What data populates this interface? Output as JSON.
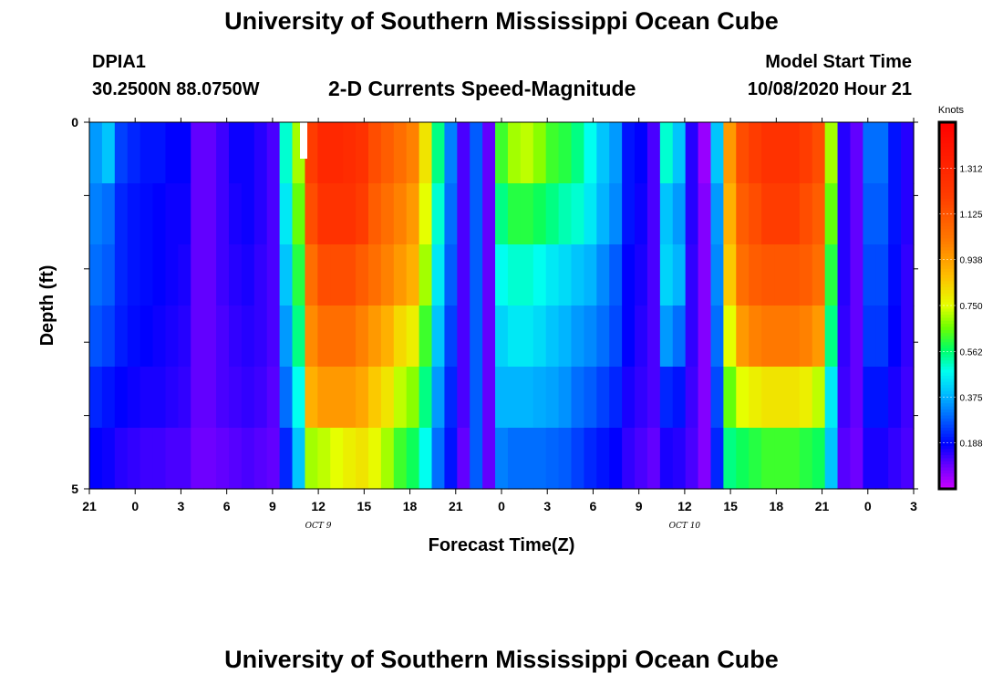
{
  "header": {
    "title": "University of Southern Mississippi Ocean Cube",
    "station_id": "DPIA1",
    "station_coords": "30.2500N 88.0750W",
    "plot_title": "2-D Currents Speed-Magnitude",
    "model_start_label": "Model Start Time",
    "model_start_value": "10/08/2020 Hour 21"
  },
  "footer": {
    "title": "University of Southern Mississippi Ocean Cube"
  },
  "chart_data": {
    "type": "heatmap",
    "title": "2-D Currents Speed-Magnitude",
    "xlabel": "Forecast Time(Z)",
    "ylabel": "Depth (ft)",
    "x_ticks": [
      "21",
      "0",
      "3",
      "6",
      "9",
      "12",
      "15",
      "18",
      "21",
      "0",
      "3",
      "6",
      "9",
      "12",
      "15",
      "18",
      "21",
      "0",
      "3"
    ],
    "x_range_hours": [
      0,
      54
    ],
    "date_labels": [
      {
        "label": "OCT 9",
        "hour": 15
      },
      {
        "label": "OCT 10",
        "hour": 39
      }
    ],
    "y_ticks": [
      "0",
      "5"
    ],
    "y_range": [
      0,
      5
    ],
    "depth_rows": 6,
    "colorbar": {
      "title": "Knots",
      "range": [
        0,
        1.5
      ],
      "ticks": [
        "1.312",
        "1.125",
        "0.938",
        "0.750",
        "0.562",
        "0.375",
        "0.188"
      ],
      "tick_values": [
        1.312,
        1.125,
        0.938,
        0.75,
        0.562,
        0.375,
        0.188
      ]
    },
    "speed_knots_by_depth_row": [
      [
        0.35,
        0.4,
        0.25,
        0.22,
        0.2,
        0.2,
        0.18,
        0.18,
        0.1,
        0.1,
        0.13,
        0.17,
        0.17,
        0.15,
        0.12,
        0.5,
        0.7,
        1.2,
        1.3,
        1.3,
        1.28,
        1.25,
        1.15,
        1.1,
        1.05,
        1.0,
        0.8,
        0.55,
        0.32,
        0.12,
        0.28,
        0.1,
        0.62,
        0.7,
        0.72,
        0.68,
        0.62,
        0.6,
        0.55,
        0.48,
        0.4,
        0.35,
        0.2,
        0.18,
        0.12,
        0.5,
        0.4,
        0.15,
        0.05,
        0.4,
        0.95,
        1.15,
        1.2,
        1.25,
        1.25,
        1.25,
        1.2,
        1.15,
        0.7,
        0.15,
        0.1,
        0.3,
        0.3,
        0.2,
        0.15
      ],
      [
        0.32,
        0.3,
        0.22,
        0.2,
        0.19,
        0.18,
        0.17,
        0.17,
        0.1,
        0.1,
        0.13,
        0.16,
        0.17,
        0.15,
        0.12,
        0.45,
        0.65,
        1.15,
        1.25,
        1.25,
        1.25,
        1.2,
        1.1,
        1.05,
        1.0,
        0.95,
        0.75,
        0.5,
        0.3,
        0.12,
        0.28,
        0.1,
        0.55,
        0.6,
        0.6,
        0.58,
        0.55,
        0.52,
        0.5,
        0.45,
        0.38,
        0.33,
        0.2,
        0.17,
        0.12,
        0.4,
        0.35,
        0.15,
        0.07,
        0.35,
        0.9,
        1.1,
        1.15,
        1.2,
        1.2,
        1.2,
        1.15,
        1.1,
        0.65,
        0.15,
        0.1,
        0.28,
        0.28,
        0.2,
        0.15
      ],
      [
        0.3,
        0.28,
        0.22,
        0.2,
        0.19,
        0.18,
        0.17,
        0.16,
        0.1,
        0.1,
        0.13,
        0.15,
        0.16,
        0.14,
        0.12,
        0.4,
        0.6,
        1.05,
        1.15,
        1.15,
        1.15,
        1.1,
        1.05,
        1.0,
        0.95,
        0.9,
        0.7,
        0.45,
        0.28,
        0.12,
        0.28,
        0.1,
        0.48,
        0.5,
        0.5,
        0.48,
        0.45,
        0.43,
        0.4,
        0.38,
        0.33,
        0.28,
        0.18,
        0.16,
        0.12,
        0.42,
        0.38,
        0.14,
        0.07,
        0.33,
        0.85,
        1.05,
        1.1,
        1.12,
        1.12,
        1.12,
        1.1,
        1.05,
        0.6,
        0.15,
        0.1,
        0.26,
        0.26,
        0.19,
        0.14
      ],
      [
        0.27,
        0.25,
        0.21,
        0.19,
        0.18,
        0.17,
        0.16,
        0.15,
        0.1,
        0.1,
        0.12,
        0.14,
        0.15,
        0.14,
        0.12,
        0.35,
        0.55,
        0.98,
        1.05,
        1.05,
        1.05,
        1.0,
        0.95,
        0.9,
        0.82,
        0.78,
        0.62,
        0.4,
        0.25,
        0.12,
        0.28,
        0.1,
        0.42,
        0.45,
        0.45,
        0.43,
        0.4,
        0.38,
        0.35,
        0.33,
        0.3,
        0.26,
        0.18,
        0.15,
        0.12,
        0.35,
        0.3,
        0.14,
        0.07,
        0.3,
        0.75,
        0.95,
        1.0,
        1.02,
        1.02,
        1.02,
        1.0,
        0.95,
        0.55,
        0.14,
        0.1,
        0.24,
        0.24,
        0.18,
        0.14
      ],
      [
        0.22,
        0.2,
        0.18,
        0.17,
        0.16,
        0.16,
        0.15,
        0.14,
        0.1,
        0.1,
        0.12,
        0.13,
        0.14,
        0.13,
        0.11,
        0.3,
        0.48,
        0.9,
        0.95,
        0.95,
        0.95,
        0.92,
        0.85,
        0.8,
        0.72,
        0.68,
        0.55,
        0.35,
        0.22,
        0.12,
        0.28,
        0.1,
        0.38,
        0.38,
        0.38,
        0.37,
        0.36,
        0.34,
        0.3,
        0.28,
        0.25,
        0.22,
        0.16,
        0.14,
        0.12,
        0.22,
        0.2,
        0.13,
        0.07,
        0.26,
        0.65,
        0.75,
        0.78,
        0.8,
        0.8,
        0.8,
        0.78,
        0.72,
        0.45,
        0.13,
        0.1,
        0.2,
        0.2,
        0.16,
        0.13
      ],
      [
        0.18,
        0.17,
        0.15,
        0.14,
        0.13,
        0.13,
        0.12,
        0.12,
        0.09,
        0.09,
        0.1,
        0.11,
        0.12,
        0.11,
        0.1,
        0.22,
        0.4,
        0.7,
        0.72,
        0.75,
        0.78,
        0.8,
        0.76,
        0.7,
        0.62,
        0.58,
        0.48,
        0.3,
        0.2,
        0.1,
        0.28,
        0.1,
        0.32,
        0.3,
        0.3,
        0.3,
        0.29,
        0.28,
        0.25,
        0.22,
        0.2,
        0.18,
        0.14,
        0.12,
        0.1,
        0.16,
        0.15,
        0.12,
        0.07,
        0.22,
        0.55,
        0.58,
        0.6,
        0.62,
        0.62,
        0.62,
        0.6,
        0.58,
        0.4,
        0.11,
        0.09,
        0.16,
        0.16,
        0.14,
        0.12
      ]
    ]
  }
}
